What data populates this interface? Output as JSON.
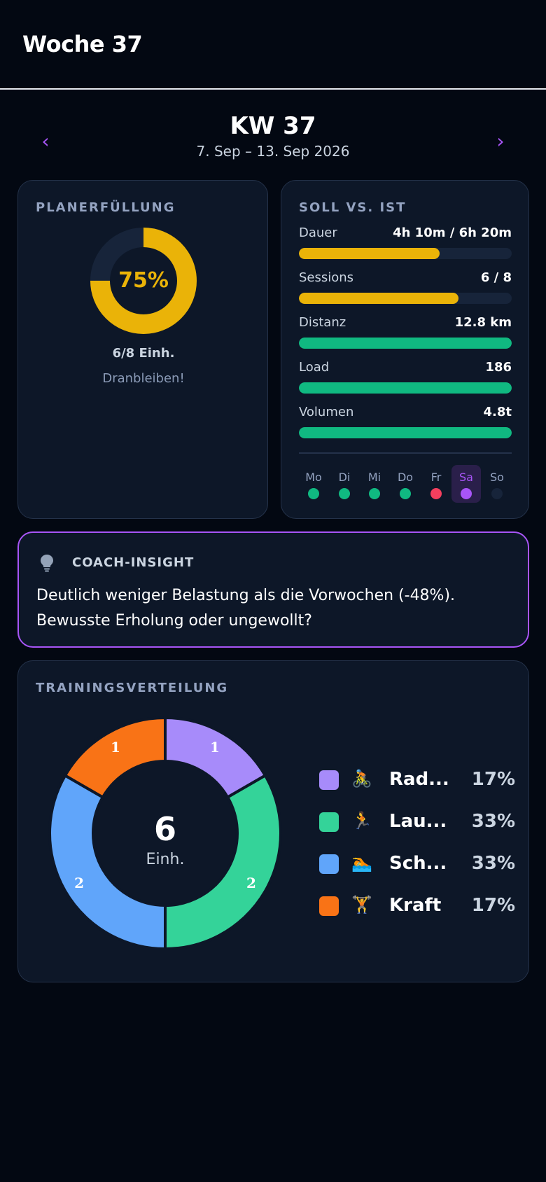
{
  "header": {
    "title": "Woche 37"
  },
  "week_nav": {
    "prev_icon": "chevron-left-icon",
    "next_icon": "chevron-right-icon",
    "prev_glyph": "‹",
    "next_glyph": "›",
    "title": "KW 37",
    "range": "7. Sep – 13. Sep 2026"
  },
  "plan": {
    "title": "PLANERFÜLLUNG",
    "percent_label": "75%",
    "percent_value": 0.75,
    "count": "6/8 Einh.",
    "message": "Dranbleiben!",
    "ring_color": "#eab308",
    "track_color": "#17243a"
  },
  "soll": {
    "title": "SOLL VS. IST",
    "metrics": [
      {
        "label": "Dauer",
        "value": "4h 10m / 6h 20m",
        "fill": 0.66,
        "color": "#eab308"
      },
      {
        "label": "Sessions",
        "value": "6 / 8",
        "fill": 0.75,
        "color": "#eab308"
      },
      {
        "label": "Distanz",
        "value": "12.8 km",
        "fill": 1.0,
        "color": "#10b981"
      },
      {
        "label": "Load",
        "value": "186",
        "fill": 1.0,
        "color": "#10b981"
      },
      {
        "label": "Volumen",
        "value": "4.8t",
        "fill": 1.0,
        "color": "#10b981"
      }
    ],
    "days": [
      {
        "label": "Mo",
        "color": "#10b981",
        "active": false
      },
      {
        "label": "Di",
        "color": "#10b981",
        "active": false
      },
      {
        "label": "Mi",
        "color": "#10b981",
        "active": false
      },
      {
        "label": "Do",
        "color": "#10b981",
        "active": false
      },
      {
        "label": "Fr",
        "color": "#f43f5e",
        "active": false
      },
      {
        "label": "Sa",
        "color": "#a855f7",
        "active": true
      },
      {
        "label": "So",
        "color": "#17243a",
        "active": false
      }
    ]
  },
  "coach": {
    "icon": "lightbulb-icon",
    "title": "COACH-INSIGHT",
    "text": "Deutlich weniger Belastung als die Vorwochen (-48%). Bewusste Erholung oder ungewollt?"
  },
  "distribution": {
    "title": "TRAININGSVERTEILUNG",
    "total": "6",
    "unit": "Einh.",
    "segments": [
      {
        "name": "Rad...",
        "icon": "cycling-icon",
        "emoji": "🚴",
        "value": 1,
        "value_label": "1",
        "pct": "17%",
        "color": "#a78bfa"
      },
      {
        "name": "Lau...",
        "icon": "running-icon",
        "emoji": "🏃",
        "value": 2,
        "value_label": "2",
        "pct": "33%",
        "color": "#34d399"
      },
      {
        "name": "Sch...",
        "icon": "swimming-icon",
        "emoji": "🏊",
        "value": 2,
        "value_label": "2",
        "pct": "33%",
        "color": "#60a5fa"
      },
      {
        "name": "Kraft",
        "icon": "weightlifting-icon",
        "emoji": "🏋",
        "value": 1,
        "value_label": "1",
        "pct": "17%",
        "color": "#f97316"
      }
    ]
  }
}
